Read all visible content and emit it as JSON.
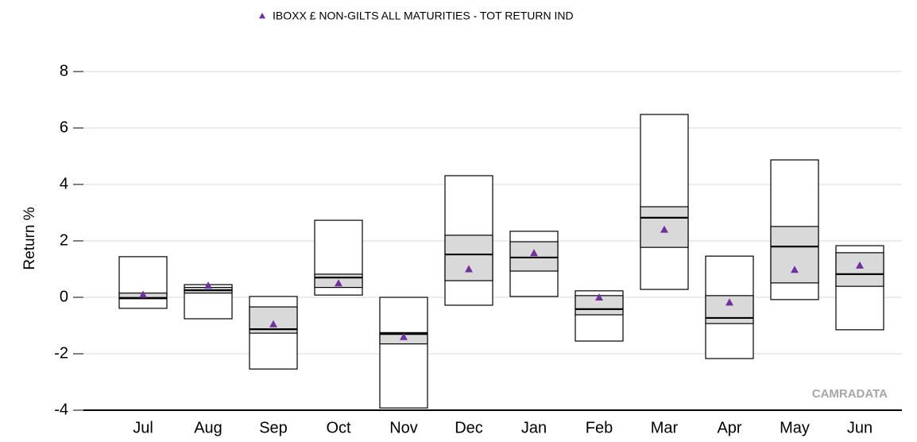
{
  "chart_data": {
    "type": "box",
    "title": null,
    "ylabel": "Return %",
    "watermark": "CAMRADATA",
    "categories": [
      "Jul",
      "Aug",
      "Sep",
      "Oct",
      "Nov",
      "Dec",
      "Jan",
      "Feb",
      "Mar",
      "Apr",
      "May",
      "Jun"
    ],
    "max": [
      1.44,
      0.45,
      0.03,
      2.73,
      0,
      4.31,
      2.34,
      0.23,
      6.48,
      1.46,
      4.87,
      1.83
    ],
    "q3": [
      0.15,
      0.35,
      -0.34,
      0.82,
      -1.25,
      2.2,
      1.97,
      0.06,
      3.21,
      0.06,
      2.51,
      1.58
    ],
    "median": [
      -0.02,
      0.25,
      -1.13,
      0.7,
      -1.3,
      1.52,
      1.41,
      -0.42,
      2.82,
      -0.73,
      1.8,
      0.82
    ],
    "q1": [
      -0.05,
      0.15,
      -1.27,
      0.35,
      -1.65,
      0.59,
      0.93,
      -0.62,
      1.77,
      -0.93,
      0.51,
      0.39
    ],
    "min": [
      -0.39,
      -0.76,
      -2.54,
      0.08,
      -3.92,
      -0.28,
      0.03,
      -1.55,
      0.28,
      -2.17,
      -0.08,
      -1.15
    ],
    "box_fill": "#d9d9d9",
    "series": [
      {
        "name": "IBOXX £ NON-GILTS ALL MATURITIES - TOT RETURN IND",
        "color": "#7030a0",
        "values": [
          0.1,
          0.42,
          -0.95,
          0.5,
          -1.4,
          1.0,
          1.57,
          0.0,
          2.4,
          -0.18,
          0.98,
          1.13
        ]
      }
    ],
    "ylim": [
      -4,
      8
    ],
    "yticks": [
      -4,
      -2,
      0,
      2,
      4,
      6,
      8
    ],
    "grid": true,
    "legend": "top"
  }
}
